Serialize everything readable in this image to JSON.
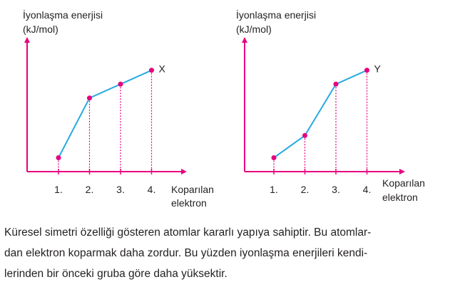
{
  "axis_color": "#e6007e",
  "line_color": "#29abe2",
  "chart_data": [
    {
      "type": "line",
      "ylabel_line1": "İyonlaşma enerjisi",
      "ylabel_line2": "(kJ/mol)",
      "xlabel_line1": "Koparılan",
      "xlabel_line2": "elektron",
      "categories": [
        "1.",
        "2.",
        "3.",
        "4."
      ],
      "x": [
        1,
        2,
        3,
        4
      ],
      "values": [
        1,
        5.3,
        6.3,
        7.3
      ],
      "series_label": "X"
    },
    {
      "type": "line",
      "ylabel_line1": "İyonlaşma enerjisi",
      "ylabel_line2": "(kJ/mol)",
      "xlabel_line1": "Koparılan",
      "xlabel_line2": "elektron",
      "categories": [
        "1.",
        "2.",
        "3.",
        "4."
      ],
      "x": [
        1,
        2,
        3,
        4
      ],
      "values": [
        1,
        2.6,
        6.3,
        7.3
      ],
      "series_label": "Y"
    }
  ],
  "paragraph": {
    "line1": "Küresel simetri özelliği gösteren atomlar kararlı yapıya sahiptir. Bu atomlar-",
    "line2": "dan elektron koparmak daha zordur. Bu yüzden iyonlaşma enerjileri kendi-",
    "line3": "lerinden bir önceki gruba göre daha yüksektir."
  }
}
